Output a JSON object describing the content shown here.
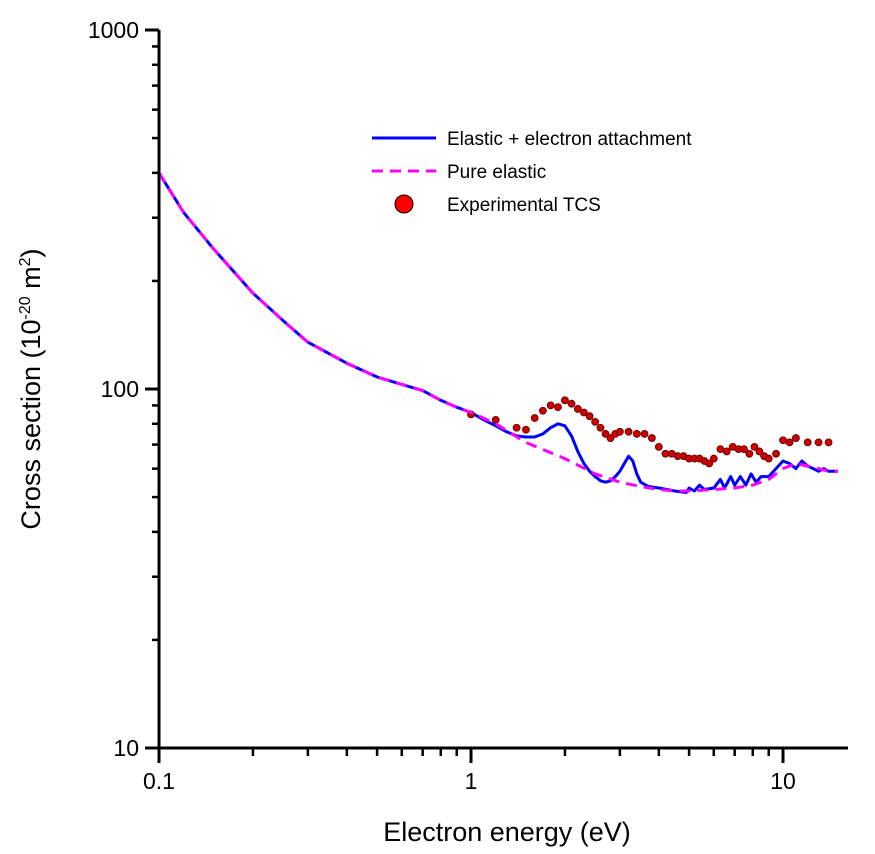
{
  "chart_data": {
    "type": "line",
    "xlabel": "Electron energy (eV)",
    "ylabel_main": "Cross section (10",
    "ylabel_exp": "-20",
    "ylabel_unit": " m",
    "ylabel_unit_exp": "2",
    "ylabel_close": ")",
    "x_scale": "log",
    "y_scale": "log",
    "xlim": [
      0.1,
      15
    ],
    "ylim": [
      10,
      1000
    ],
    "x_ticks": [
      {
        "value": 0.1,
        "label": "0.1"
      },
      {
        "value": 1,
        "label": "1"
      },
      {
        "value": 10,
        "label": "10"
      }
    ],
    "y_ticks": [
      {
        "value": 10,
        "label": "10"
      },
      {
        "value": 100,
        "label": "100"
      },
      {
        "value": 1000,
        "label": "1000"
      }
    ],
    "grid": false,
    "legend_position": "top-right",
    "series": [
      {
        "name": "Elastic + electron attachment",
        "style": "solid",
        "color": "#0000ff",
        "points": [
          [
            0.1,
            400
          ],
          [
            0.12,
            310
          ],
          [
            0.15,
            245
          ],
          [
            0.2,
            185
          ],
          [
            0.25,
            155
          ],
          [
            0.3,
            135
          ],
          [
            0.4,
            118
          ],
          [
            0.5,
            108
          ],
          [
            0.6,
            103
          ],
          [
            0.7,
            99
          ],
          [
            0.8,
            93
          ],
          [
            0.9,
            89
          ],
          [
            1.0,
            86
          ],
          [
            1.1,
            82
          ],
          [
            1.2,
            79
          ],
          [
            1.3,
            76
          ],
          [
            1.4,
            74
          ],
          [
            1.5,
            73.5
          ],
          [
            1.6,
            73.5
          ],
          [
            1.7,
            75
          ],
          [
            1.8,
            78
          ],
          [
            1.9,
            80
          ],
          [
            2.0,
            79
          ],
          [
            2.1,
            74
          ],
          [
            2.2,
            67
          ],
          [
            2.3,
            62
          ],
          [
            2.4,
            59
          ],
          [
            2.5,
            57
          ],
          [
            2.6,
            55.5
          ],
          [
            2.7,
            55
          ],
          [
            2.8,
            55.5
          ],
          [
            2.9,
            57
          ],
          [
            3.0,
            59
          ],
          [
            3.1,
            62
          ],
          [
            3.2,
            65
          ],
          [
            3.3,
            63
          ],
          [
            3.4,
            58
          ],
          [
            3.5,
            55
          ],
          [
            3.7,
            53.5
          ],
          [
            4.0,
            53
          ],
          [
            4.5,
            52
          ],
          [
            4.9,
            51.5
          ],
          [
            5.0,
            53
          ],
          [
            5.2,
            52
          ],
          [
            5.4,
            54
          ],
          [
            5.6,
            52.5
          ],
          [
            6.0,
            53
          ],
          [
            6.3,
            56
          ],
          [
            6.5,
            53
          ],
          [
            6.8,
            57
          ],
          [
            7.0,
            54
          ],
          [
            7.3,
            57
          ],
          [
            7.6,
            54
          ],
          [
            7.9,
            58
          ],
          [
            8.2,
            55
          ],
          [
            8.5,
            57
          ],
          [
            9.0,
            57
          ],
          [
            9.5,
            60
          ],
          [
            10.0,
            63
          ],
          [
            10.5,
            62
          ],
          [
            11.0,
            60
          ],
          [
            11.5,
            63
          ],
          [
            12.0,
            61
          ],
          [
            12.5,
            60
          ],
          [
            13.0,
            59
          ],
          [
            13.5,
            60
          ],
          [
            14.0,
            59
          ],
          [
            15.0,
            59
          ]
        ]
      },
      {
        "name": "Pure elastic",
        "style": "dashed",
        "color": "#ff00ff",
        "points": [
          [
            0.1,
            400
          ],
          [
            0.12,
            310
          ],
          [
            0.15,
            245
          ],
          [
            0.2,
            185
          ],
          [
            0.25,
            155
          ],
          [
            0.3,
            135
          ],
          [
            0.4,
            118
          ],
          [
            0.5,
            108
          ],
          [
            0.6,
            103
          ],
          [
            0.7,
            99
          ],
          [
            0.8,
            93
          ],
          [
            0.9,
            89
          ],
          [
            1.0,
            86
          ],
          [
            1.2,
            80
          ],
          [
            1.5,
            71
          ],
          [
            2.0,
            64
          ],
          [
            2.5,
            58
          ],
          [
            3.0,
            55
          ],
          [
            3.5,
            53.5
          ],
          [
            4.0,
            52.5
          ],
          [
            4.5,
            52
          ],
          [
            5.0,
            52
          ],
          [
            6.0,
            52.5
          ],
          [
            7.0,
            53
          ],
          [
            8.0,
            54
          ],
          [
            9.0,
            56
          ],
          [
            10.0,
            60
          ],
          [
            11.0,
            62
          ],
          [
            12.0,
            61
          ],
          [
            13.0,
            60
          ],
          [
            14.0,
            59
          ],
          [
            15.0,
            59
          ]
        ]
      },
      {
        "name": "Experimental TCS",
        "style": "markers",
        "color": "#cc0000",
        "points": [
          [
            1.0,
            85
          ],
          [
            1.2,
            82
          ],
          [
            1.4,
            78
          ],
          [
            1.5,
            77
          ],
          [
            1.6,
            83
          ],
          [
            1.7,
            87
          ],
          [
            1.8,
            90
          ],
          [
            1.9,
            89
          ],
          [
            2.0,
            93
          ],
          [
            2.1,
            91
          ],
          [
            2.2,
            88
          ],
          [
            2.3,
            86
          ],
          [
            2.4,
            84
          ],
          [
            2.5,
            81
          ],
          [
            2.6,
            78
          ],
          [
            2.7,
            75
          ],
          [
            2.8,
            73
          ],
          [
            2.9,
            75
          ],
          [
            3.0,
            76
          ],
          [
            3.2,
            76
          ],
          [
            3.4,
            75
          ],
          [
            3.6,
            75
          ],
          [
            3.8,
            73
          ],
          [
            4.0,
            69
          ],
          [
            4.2,
            66
          ],
          [
            4.4,
            66
          ],
          [
            4.6,
            65
          ],
          [
            4.8,
            65
          ],
          [
            5.0,
            64
          ],
          [
            5.2,
            64
          ],
          [
            5.4,
            64
          ],
          [
            5.6,
            63
          ],
          [
            5.8,
            62
          ],
          [
            6.0,
            64
          ],
          [
            6.3,
            68
          ],
          [
            6.6,
            67
          ],
          [
            6.9,
            69
          ],
          [
            7.2,
            68
          ],
          [
            7.5,
            68
          ],
          [
            7.8,
            66
          ],
          [
            8.1,
            69
          ],
          [
            8.4,
            67
          ],
          [
            8.7,
            65
          ],
          [
            9.0,
            64
          ],
          [
            9.5,
            66
          ],
          [
            10.0,
            72
          ],
          [
            10.5,
            71
          ],
          [
            11.0,
            73
          ],
          [
            12.0,
            71
          ],
          [
            13.0,
            71
          ],
          [
            14.0,
            71
          ]
        ]
      }
    ]
  }
}
